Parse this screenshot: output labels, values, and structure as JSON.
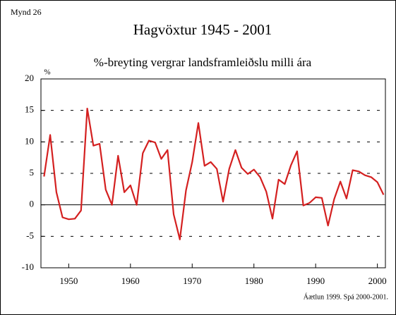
{
  "chart_data": {
    "type": "line",
    "label": "Mynd 26",
    "title": "Hagvöxtur 1945 - 2001",
    "subtitle": "%-breyting vergrar landsframleiðslu milli ára",
    "y_label": "%",
    "note": "Áætlun 1999. Spá  2000-2001.",
    "x": [
      1946,
      1947,
      1948,
      1949,
      1950,
      1951,
      1952,
      1953,
      1954,
      1955,
      1956,
      1957,
      1958,
      1959,
      1960,
      1961,
      1962,
      1963,
      1964,
      1965,
      1966,
      1967,
      1968,
      1969,
      1970,
      1971,
      1972,
      1973,
      1974,
      1975,
      1976,
      1977,
      1978,
      1979,
      1980,
      1981,
      1982,
      1983,
      1984,
      1985,
      1986,
      1987,
      1988,
      1989,
      1990,
      1991,
      1992,
      1993,
      1994,
      1995,
      1996,
      1997,
      1998,
      1999,
      2000,
      2001
    ],
    "values": [
      4.5,
      11.1,
      2.0,
      -2.0,
      -2.3,
      -2.2,
      -0.9,
      15.3,
      9.4,
      9.7,
      2.4,
      0,
      7.8,
      2.0,
      3.1,
      0,
      8.2,
      10.2,
      9.9,
      7.3,
      8.7,
      -1.5,
      -5.5,
      2.3,
      6.8,
      13.0,
      6.2,
      6.8,
      5.7,
      0.5,
      5.7,
      8.7,
      5.9,
      4.9,
      5.6,
      4.4,
      2.1,
      -2.2,
      4.0,
      3.3,
      6.3,
      8.5,
      -0.1,
      0.3,
      1.2,
      1.1,
      -3.3,
      0.9,
      3.7,
      1.0,
      5.5,
      5.3,
      4.7,
      4.4,
      3.6,
      1.6
    ],
    "color": "#d42020",
    "xlim": [
      1945.5,
      2001.3
    ],
    "xticks": [
      1950,
      1960,
      1970,
      1980,
      1990,
      2000
    ],
    "ylim": [
      -10,
      20
    ],
    "yticks": [
      -10,
      -5,
      0,
      5,
      10,
      15,
      20
    ],
    "grid": true
  }
}
